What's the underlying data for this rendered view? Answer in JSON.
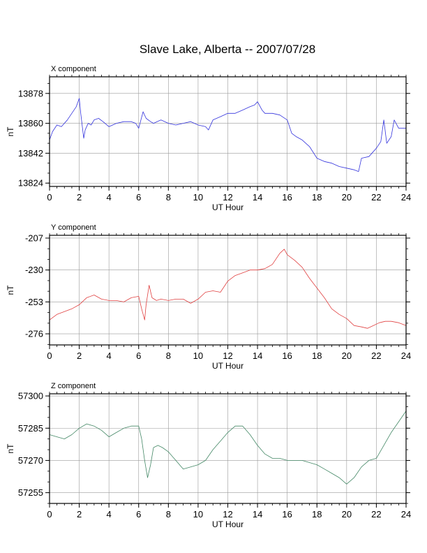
{
  "figure": {
    "title": "Slave Lake, Alberta -- 2007/07/28"
  },
  "chart_data": [
    {
      "type": "line",
      "panel_label": "X component",
      "xlabel": "UT Hour",
      "ylabel": "nT",
      "xlim": [
        0,
        24
      ],
      "ylim": [
        13822,
        13888
      ],
      "x_ticks": [
        0,
        2,
        4,
        6,
        8,
        10,
        12,
        14,
        16,
        18,
        20,
        22,
        24
      ],
      "y_ticks": [
        13824,
        13842,
        13860,
        13878
      ],
      "grid": true,
      "color": "#3333dd",
      "x": [
        0,
        0.2,
        0.5,
        0.8,
        1.2,
        1.5,
        1.8,
        2.0,
        2.1,
        2.3,
        2.4,
        2.6,
        2.8,
        3.0,
        3.3,
        3.6,
        4.0,
        4.5,
        5.0,
        5.5,
        5.8,
        6.0,
        6.3,
        6.5,
        6.8,
        7.0,
        7.5,
        8.0,
        8.5,
        9.0,
        9.5,
        10.0,
        10.5,
        10.7,
        11.0,
        11.5,
        12.0,
        12.5,
        13.0,
        13.5,
        13.8,
        14.0,
        14.3,
        14.5,
        15.0,
        15.5,
        16.0,
        16.3,
        16.6,
        17.0,
        17.5,
        18.0,
        18.5,
        19.0,
        19.5,
        20.0,
        20.5,
        20.8,
        21.0,
        21.5,
        22.0,
        22.3,
        22.5,
        22.7,
        23.0,
        23.2,
        23.5,
        24.0
      ],
      "values": [
        13850,
        13855,
        13859,
        13858,
        13862,
        13866,
        13870,
        13875,
        13866,
        13851,
        13856,
        13860,
        13859,
        13862,
        13863,
        13861,
        13858,
        13860,
        13861,
        13861,
        13860,
        13857,
        13867,
        13863,
        13861,
        13860,
        13862,
        13860,
        13859,
        13860,
        13861,
        13859,
        13858,
        13856,
        13862,
        13864,
        13866,
        13866,
        13868,
        13870,
        13871,
        13873,
        13868,
        13866,
        13866,
        13865,
        13862,
        13854,
        13852,
        13850,
        13846,
        13839,
        13837,
        13836,
        13834,
        13833,
        13832,
        13831,
        13839,
        13840,
        13845,
        13849,
        13862,
        13848,
        13852,
        13862,
        13857,
        13857
      ]
    },
    {
      "type": "line",
      "panel_label": "Y component",
      "xlabel": "UT Hour",
      "ylabel": "nT",
      "xlim": [
        0,
        24
      ],
      "ylim": [
        -284,
        -205
      ],
      "x_ticks": [
        0,
        2,
        4,
        6,
        8,
        10,
        12,
        14,
        16,
        18,
        20,
        22,
        24
      ],
      "y_ticks": [
        -207,
        -230,
        -253,
        -276
      ],
      "grid": true,
      "color": "#e04040",
      "x": [
        0,
        0.5,
        1.0,
        1.5,
        2.0,
        2.5,
        3.0,
        3.5,
        4.0,
        4.5,
        5.0,
        5.5,
        6.0,
        6.2,
        6.4,
        6.5,
        6.7,
        6.9,
        7.2,
        7.5,
        8.0,
        8.5,
        9.0,
        9.5,
        10.0,
        10.5,
        11.0,
        11.5,
        12.0,
        12.5,
        13.0,
        13.5,
        14.0,
        14.5,
        15.0,
        15.5,
        15.8,
        16.0,
        16.5,
        17.0,
        17.5,
        18.0,
        18.5,
        19.0,
        19.5,
        20.0,
        20.5,
        21.0,
        21.4,
        21.8,
        22.2,
        22.6,
        23.0,
        23.5,
        24.0
      ],
      "values": [
        -266,
        -262,
        -260,
        -258,
        -255,
        -250,
        -248,
        -251,
        -252,
        -252,
        -253,
        -250,
        -249,
        -258,
        -266,
        -255,
        -241,
        -250,
        -252,
        -251,
        -252,
        -251,
        -251,
        -254,
        -251,
        -246,
        -245,
        -246,
        -238,
        -234,
        -232,
        -230,
        -230,
        -229,
        -226,
        -218,
        -215,
        -219,
        -223,
        -228,
        -236,
        -243,
        -250,
        -258,
        -262,
        -265,
        -270,
        -271,
        -272,
        -270,
        -268,
        -267,
        -267,
        -268,
        -270
      ]
    },
    {
      "type": "line",
      "panel_label": "Z component",
      "xlabel": "UT Hour",
      "ylabel": "nT",
      "xlim": [
        0,
        24
      ],
      "ylim": [
        57250,
        57301
      ],
      "x_ticks": [
        0,
        2,
        4,
        6,
        8,
        10,
        12,
        14,
        16,
        18,
        20,
        22,
        24
      ],
      "y_ticks": [
        57255,
        57270,
        57285,
        57300
      ],
      "grid": true,
      "color": "#448866",
      "x": [
        0,
        0.5,
        1.0,
        1.5,
        2.0,
        2.5,
        3.0,
        3.5,
        4.0,
        4.5,
        5.0,
        5.5,
        6.0,
        6.2,
        6.4,
        6.6,
        6.8,
        7.0,
        7.3,
        7.6,
        8.0,
        8.5,
        9.0,
        9.5,
        10.0,
        10.5,
        11.0,
        11.5,
        12.0,
        12.5,
        13.0,
        13.5,
        14.0,
        14.5,
        15.0,
        15.5,
        16.0,
        16.5,
        17.0,
        17.5,
        18.0,
        18.5,
        19.0,
        19.5,
        20.0,
        20.5,
        21.0,
        21.5,
        22.0,
        22.5,
        23.0,
        23.5,
        24.0
      ],
      "values": [
        57282,
        57281,
        57280,
        57282,
        57285,
        57287,
        57286,
        57284,
        57281,
        57283,
        57285,
        57286,
        57286,
        57280,
        57270,
        57262,
        57268,
        57276,
        57277,
        57276,
        57274,
        57270,
        57266,
        57267,
        57268,
        57270,
        57275,
        57279,
        57283,
        57286,
        57286,
        57282,
        57277,
        57273,
        57271,
        57271,
        57270,
        57270,
        57270,
        57269,
        57268,
        57266,
        57264,
        57262,
        57259,
        57262,
        57267,
        57270,
        57271,
        57277,
        57283,
        57288,
        57293
      ]
    }
  ]
}
